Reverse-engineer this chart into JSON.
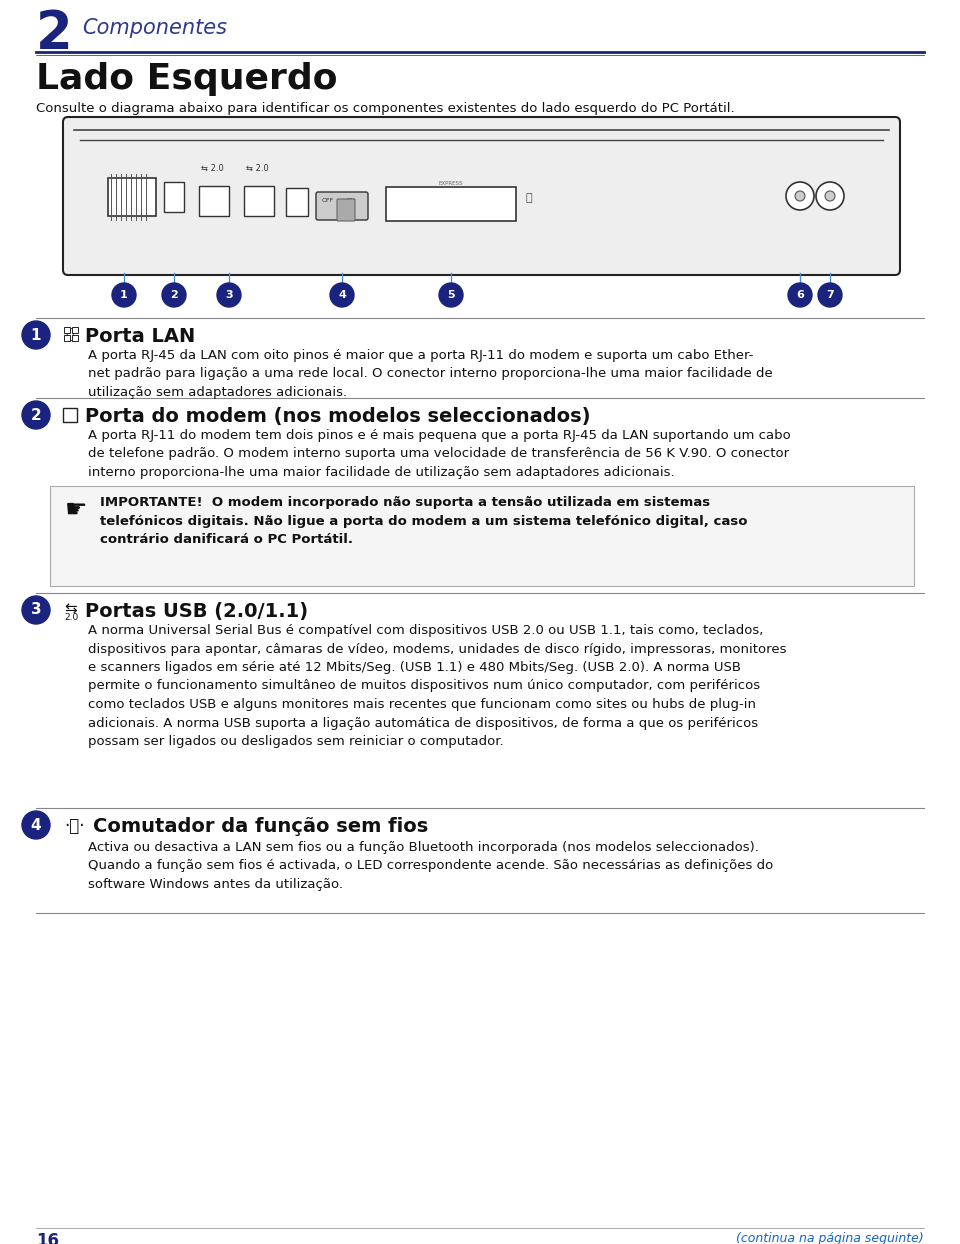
{
  "page_bg": "#ffffff",
  "dark_blue": "#1a237e",
  "mid_blue": "#2d3a8c",
  "blue": "#1565c0",
  "text_color": "#111111",
  "light_blue": "#4a90d9",
  "gray_rule": "#888888",
  "chapter_num": "2",
  "chapter_title": "Componentes",
  "section_title": "Lado Esquerdo",
  "section_subtitle": "Consulte o diagrama abaixo para identificar os componentes existentes do lado esquerdo do PC Portátil.",
  "item1_num": "1",
  "item1_title": "Porta LAN",
  "item1_body": "A porta RJ-45 da LAN com oito pinos é maior que a porta RJ-11 do modem e suporta um cabo Ether-\nnet padrão para ligação a uma rede local. O conector interno proporciona-lhe uma maior facilidade de\nutilização sem adaptadores adicionais.",
  "item2_num": "2",
  "item2_title": "Porta do modem (nos modelos seleccionados)",
  "item2_body": "A porta RJ-11 do modem tem dois pinos e é mais pequena que a porta RJ-45 da LAN suportando um cabo\nde telefone padrão. O modem interno suporta uma velocidade de transferência de 56 K V.90. O conector\ninterno proporciona-lhe uma maior facilidade de utilização sem adaptadores adicionais.",
  "item2_warning_full": "IMPORTANTE!  O modem incorporado não suporta a tensão utilizada em sistemas\ntelefónicos digitais. Não ligue a porta do modem a um sistema telefónico digital, caso\ncontrário danificará o PC Portátil.",
  "item3_num": "3",
  "item3_title": "Portas USB (2.0/1.1)",
  "item3_body": "A norma Universal Serial Bus é compatível com dispositivos USB 2.0 ou USB 1.1, tais como, teclados,\ndispositivos para apontar, câmaras de vídeo, modems, unidades de disco rígido, impressoras, monitores\ne scanners ligados em série até 12 Mbits/Seg. (USB 1.1) e 480 Mbits/Seg. (USB 2.0). A norma USB\npermite o funcionamento simultâneo de muitos dispositivos num único computador, com periféricos\ncomo teclados USB e alguns monitores mais recentes que funcionam como sites ou hubs de plug-in\nadicionais. A norma USB suporta a ligação automática de dispositivos, de forma a que os periféricos\npossam ser ligados ou desligados sem reiniciar o computador.",
  "item4_num": "4",
  "item4_title": "Comutador da função sem fios",
  "item4_body": "Activa ou desactiva a LAN sem fios ou a função Bluetooth incorporada (nos modelos seleccionados).\nQuando a função sem fios é activada, o LED correspondente acende. São necessárias as definições do\nsoftware Windows antes da utilização.",
  "page_num": "16",
  "page_note": "(continua na página seguinte)"
}
